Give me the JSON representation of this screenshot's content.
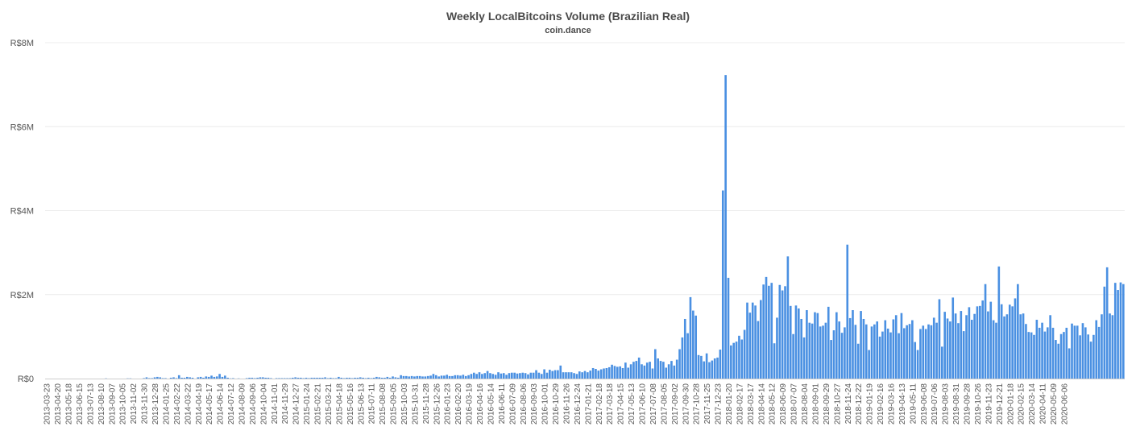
{
  "chart_data": {
    "type": "bar",
    "title": "Weekly LocalBitcoins Volume (Brazilian Real)",
    "subtitle": "coin.dance",
    "xlabel": "",
    "ylabel": "",
    "ylim": [
      0,
      8000000
    ],
    "yticks": [
      {
        "value": 0,
        "label": "R$0"
      },
      {
        "value": 2000000,
        "label": "R$2M"
      },
      {
        "value": 4000000,
        "label": "R$4M"
      },
      {
        "value": 6000000,
        "label": "R$6M"
      },
      {
        "value": 8000000,
        "label": "R$8M"
      }
    ],
    "grid": true,
    "legend": "none",
    "bar_color": "#4a90e2",
    "x_tick_labels": [
      "2013-03-23",
      "2013-04-20",
      "2013-05-18",
      "2013-06-15",
      "2013-07-13",
      "2013-08-10",
      "2013-09-07",
      "2013-10-05",
      "2013-11-02",
      "2013-11-30",
      "2013-12-28",
      "2014-01-25",
      "2014-02-22",
      "2014-03-22",
      "2014-04-19",
      "2014-05-17",
      "2014-06-14",
      "2014-07-12",
      "2014-08-09",
      "2014-09-06",
      "2014-10-04",
      "2014-11-01",
      "2014-11-29",
      "2014-12-27",
      "2015-01-24",
      "2015-02-21",
      "2015-03-21",
      "2015-04-18",
      "2015-05-16",
      "2015-06-13",
      "2015-07-11",
      "2015-08-08",
      "2015-09-05",
      "2015-10-03",
      "2015-10-31",
      "2015-11-28",
      "2015-12-26",
      "2016-01-23",
      "2016-02-20",
      "2016-03-19",
      "2016-04-16",
      "2016-05-14",
      "2016-06-11",
      "2016-07-09",
      "2016-08-06",
      "2016-09-03",
      "2016-10-01",
      "2016-10-29",
      "2016-11-26",
      "2016-12-24",
      "2017-01-21",
      "2017-02-18",
      "2017-03-18",
      "2017-04-15",
      "2017-05-13",
      "2017-06-10",
      "2017-07-08",
      "2017-08-05",
      "2017-09-02",
      "2017-09-30",
      "2017-10-28",
      "2017-11-25",
      "2017-12-23",
      "2018-01-20",
      "2018-02-17",
      "2018-03-17",
      "2018-04-14",
      "2018-05-12",
      "2018-06-09",
      "2018-07-07",
      "2018-08-04",
      "2018-09-01",
      "2018-09-29",
      "2018-10-27",
      "2018-11-24",
      "2018-12-22",
      "2019-01-19",
      "2019-02-16",
      "2019-03-16",
      "2019-04-13",
      "2019-05-11",
      "2019-06-08",
      "2019-07-06",
      "2019-08-03",
      "2019-08-31",
      "2019-09-28",
      "2019-10-26",
      "2019-11-23",
      "2019-12-21",
      "2020-01-18",
      "2020-02-15",
      "2020-03-14",
      "2020-04-11",
      "2020-05-09",
      "2020-06-06"
    ],
    "values": [
      0,
      0,
      0,
      0,
      0,
      0,
      0,
      0,
      0,
      0,
      0,
      0,
      0,
      0,
      0,
      0,
      0,
      0,
      0,
      0,
      0,
      0,
      5000,
      0,
      0,
      0,
      0,
      0,
      0,
      0,
      5000,
      5000,
      0,
      0,
      0,
      0,
      10000,
      30000,
      10000,
      10000,
      30000,
      40000,
      30000,
      10000,
      10000,
      0,
      20000,
      30000,
      10000,
      80000,
      20000,
      20000,
      40000,
      30000,
      20000,
      0,
      30000,
      40000,
      20000,
      50000,
      40000,
      70000,
      40000,
      50000,
      110000,
      40000,
      70000,
      20000,
      5000,
      10000,
      0,
      5000,
      0,
      0,
      10000,
      20000,
      20000,
      10000,
      20000,
      30000,
      30000,
      20000,
      20000,
      10000,
      0,
      10000,
      10000,
      10000,
      10000,
      10000,
      10000,
      20000,
      30000,
      20000,
      20000,
      10000,
      20000,
      10000,
      20000,
      20000,
      20000,
      20000,
      20000,
      30000,
      10000,
      20000,
      10000,
      10000,
      40000,
      20000,
      10000,
      20000,
      20000,
      10000,
      20000,
      20000,
      30000,
      20000,
      10000,
      20000,
      10000,
      20000,
      40000,
      30000,
      20000,
      20000,
      40000,
      20000,
      50000,
      30000,
      20000,
      80000,
      60000,
      60000,
      50000,
      60000,
      50000,
      60000,
      60000,
      50000,
      50000,
      60000,
      70000,
      110000,
      80000,
      50000,
      70000,
      70000,
      90000,
      60000,
      60000,
      80000,
      80000,
      70000,
      90000,
      60000,
      80000,
      110000,
      140000,
      110000,
      150000,
      110000,
      130000,
      180000,
      130000,
      110000,
      90000,
      150000,
      120000,
      130000,
      90000,
      130000,
      140000,
      140000,
      120000,
      130000,
      140000,
      130000,
      100000,
      140000,
      140000,
      200000,
      140000,
      110000,
      220000,
      140000,
      210000,
      180000,
      200000,
      200000,
      310000,
      150000,
      150000,
      150000,
      150000,
      130000,
      110000,
      170000,
      150000,
      180000,
      150000,
      190000,
      250000,
      230000,
      190000,
      220000,
      240000,
      250000,
      270000,
      330000,
      300000,
      280000,
      290000,
      250000,
      380000,
      260000,
      340000,
      400000,
      420000,
      500000,
      340000,
      310000,
      380000,
      400000,
      240000,
      700000,
      480000,
      420000,
      400000,
      260000,
      340000,
      420000,
      310000,
      450000,
      700000,
      980000,
      1420000,
      1080000,
      1940000,
      1620000,
      1500000,
      560000,
      540000,
      410000,
      600000,
      390000,
      430000,
      480000,
      500000,
      690000,
      4480000,
      7230000,
      2400000,
      790000,
      850000,
      880000,
      1020000,
      930000,
      1160000,
      1810000,
      1570000,
      1810000,
      1740000,
      1370000,
      1870000,
      2240000,
      2420000,
      2210000,
      2280000,
      840000,
      1450000,
      2230000,
      2100000,
      2200000,
      2910000,
      1730000,
      1060000,
      1740000,
      1670000,
      1420000,
      980000,
      1630000,
      1330000,
      1310000,
      1580000,
      1560000,
      1240000,
      1260000,
      1330000,
      1710000,
      920000,
      1150000,
      1580000,
      1360000,
      1090000,
      1220000,
      3190000,
      1440000,
      1630000,
      1280000,
      830000,
      1610000,
      1420000,
      1290000,
      680000,
      1240000,
      1290000,
      1360000,
      1000000,
      1120000,
      1390000,
      1190000,
      1100000,
      1410000,
      1510000,
      1080000,
      1560000,
      1200000,
      1270000,
      1300000,
      1390000,
      870000,
      680000,
      1180000,
      1260000,
      1180000,
      1290000,
      1270000,
      1450000,
      1330000,
      1890000,
      760000,
      1590000,
      1430000,
      1360000,
      1930000,
      1550000,
      1320000,
      1610000,
      1130000,
      1510000,
      1700000,
      1400000,
      1540000,
      1720000,
      1730000,
      1860000,
      2250000,
      1600000,
      1830000,
      1390000,
      1330000,
      2670000,
      1770000,
      1480000,
      1530000,
      1760000,
      1720000,
      1910000,
      2250000,
      1530000,
      1550000,
      1300000,
      1110000,
      1100000,
      1040000,
      1400000,
      1210000,
      1330000,
      1120000,
      1220000,
      1510000,
      1210000,
      920000,
      830000,
      1060000,
      1110000,
      1210000,
      720000,
      1310000,
      1260000,
      1260000,
      1030000,
      1320000,
      1220000,
      1050000,
      880000,
      1040000,
      1390000,
      1230000,
      1530000,
      2190000,
      2650000,
      1550000,
      1510000,
      2280000,
      2110000,
      2290000,
      2250000
    ]
  }
}
